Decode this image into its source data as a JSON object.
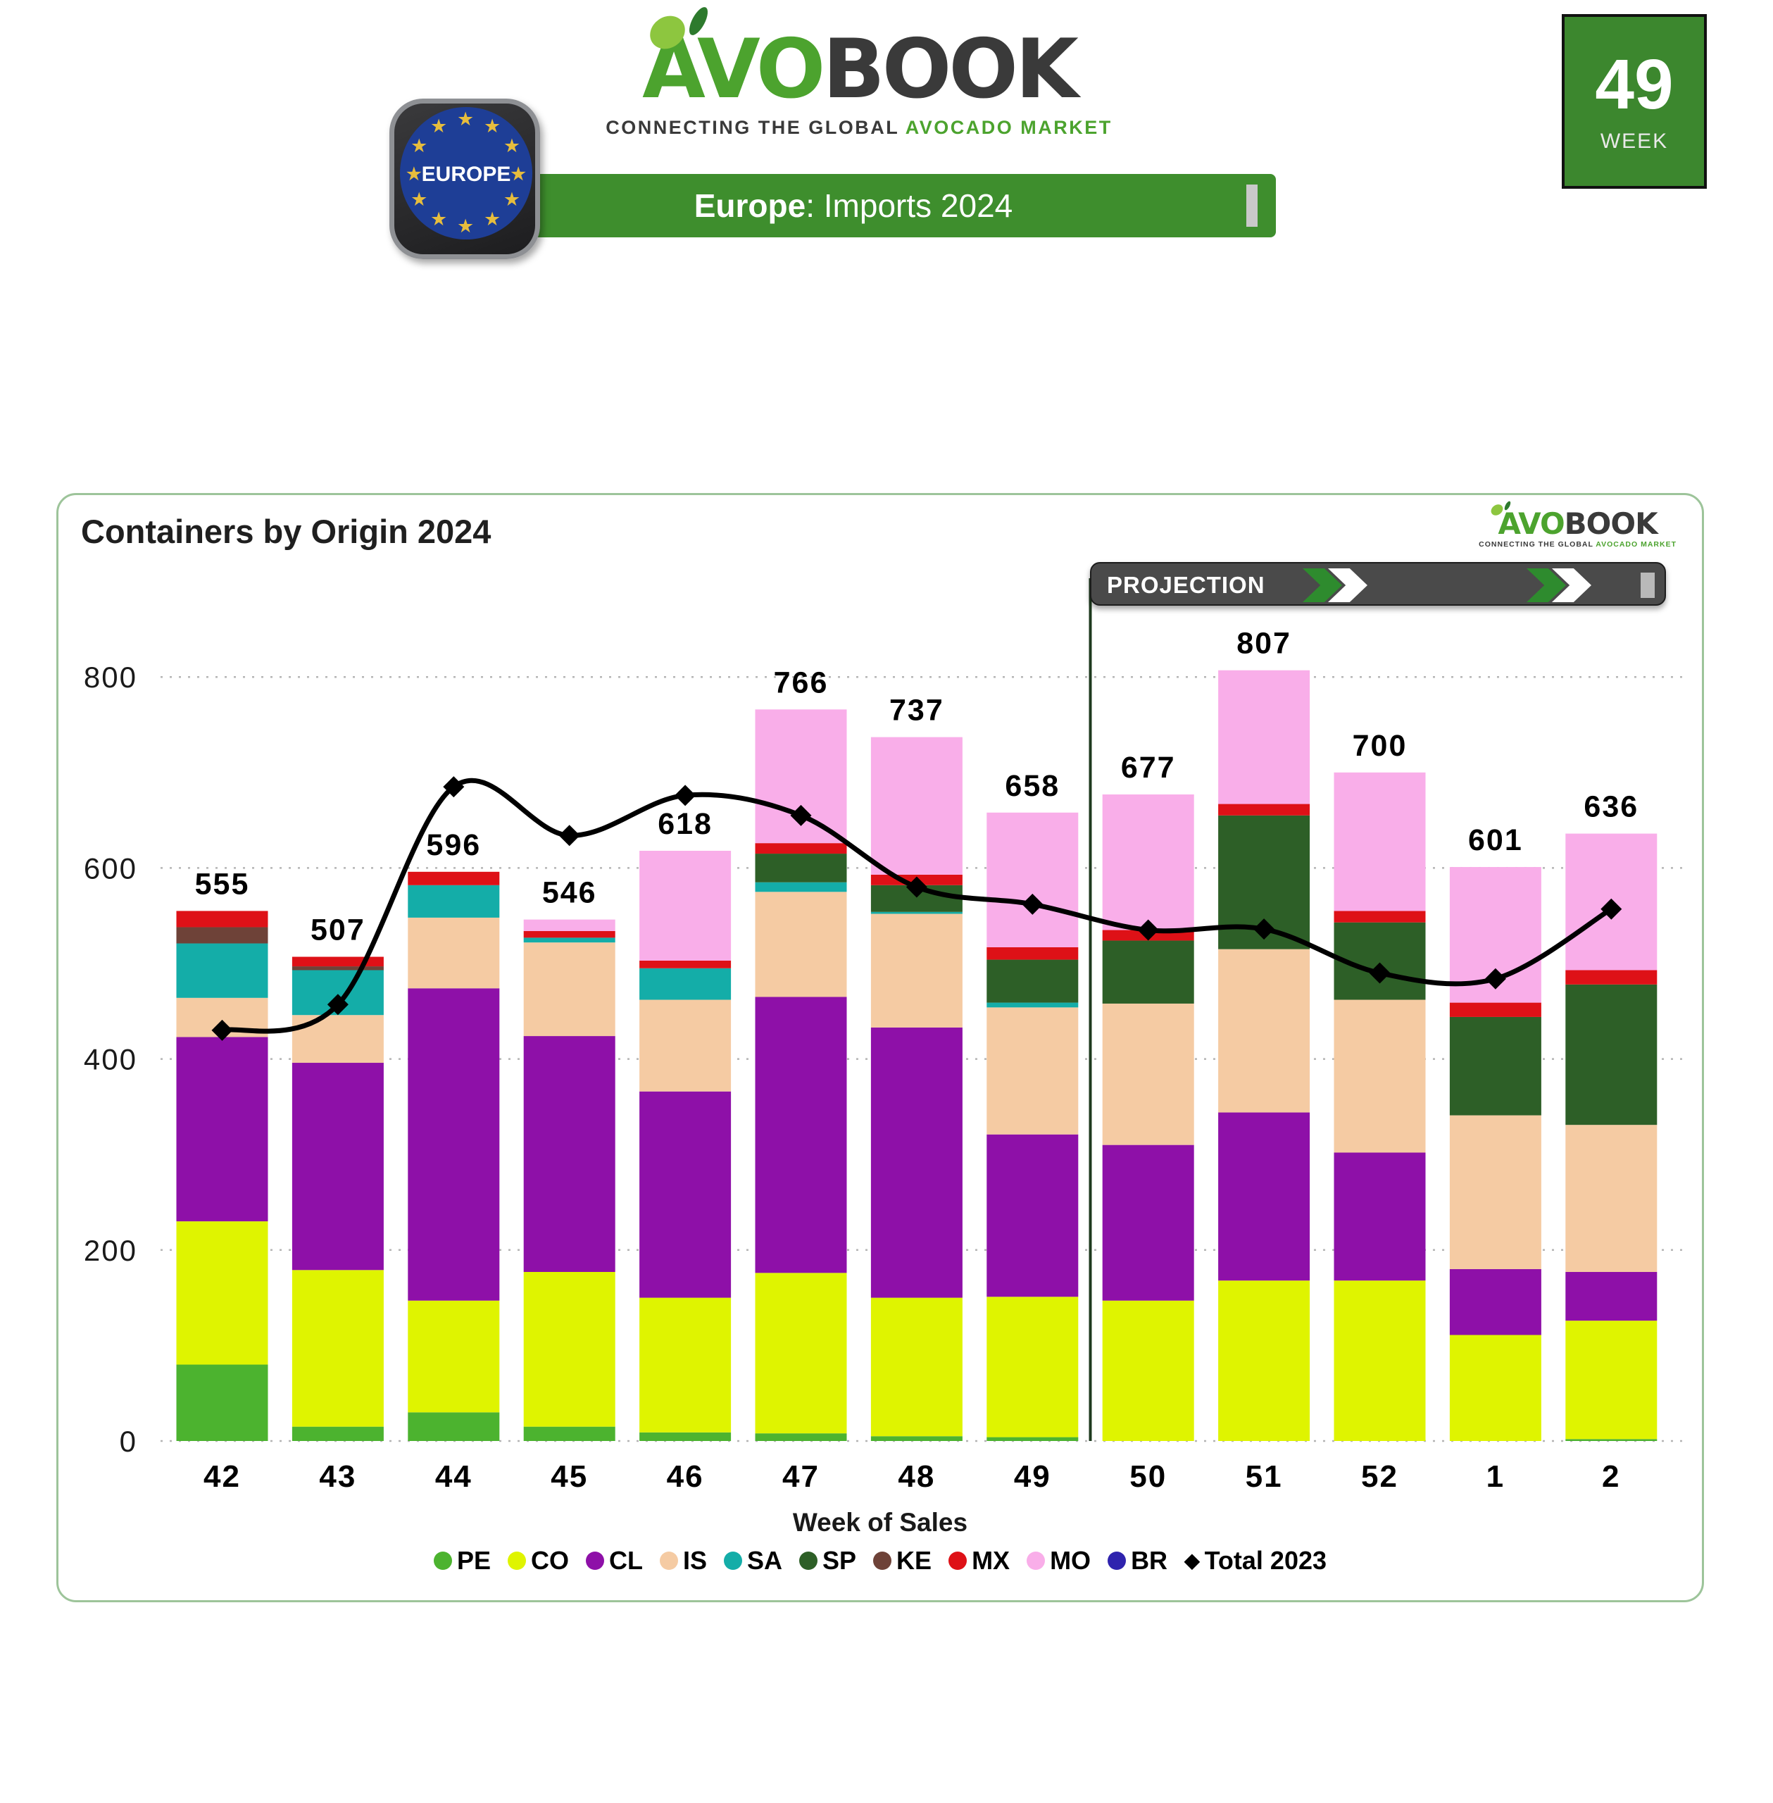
{
  "header": {
    "logo": {
      "avo": "AVO",
      "book": "BOOK",
      "tagline_dark": "CONNECTING THE GLOBAL",
      "tagline_green": "AVOCADO MARKET"
    },
    "banner": {
      "region": "Europe",
      "rest": ": Imports 2024"
    },
    "eu_badge": {
      "label": "EUROPE",
      "star_icon": "★",
      "ring_star_count": 10
    },
    "week_badge": {
      "number": "49",
      "label": "WEEK"
    }
  },
  "chart": {
    "title": "Containers by Origin 2024",
    "projection_label": "PROJECTION"
  },
  "colors": {
    "banner_green": "#3E8E2D",
    "week_badge_green": "#3C872E",
    "logo_green": "#4CA32E",
    "card_border": "#9DC49A",
    "projection_bar": "#4A4A4A",
    "line_2023": "#000000"
  },
  "chart_data": {
    "type": "bar",
    "stacked": true,
    "title": "Containers by Origin 2024",
    "xlabel": "Week of Sales",
    "ylabel": "",
    "ylim": [
      0,
      880
    ],
    "yticks": [
      0,
      200,
      400,
      600,
      800
    ],
    "grid": "dotted-horizontal",
    "legend_position": "bottom",
    "categories": [
      "42",
      "43",
      "44",
      "45",
      "46",
      "47",
      "48",
      "49",
      "50",
      "51",
      "52",
      "1",
      "2"
    ],
    "totals": [
      555,
      507,
      596,
      546,
      618,
      766,
      737,
      658,
      677,
      807,
      700,
      601,
      636
    ],
    "series": [
      {
        "name": "PE",
        "color": "#4CB32F",
        "values": [
          80,
          15,
          30,
          15,
          9,
          8,
          5,
          4,
          0,
          0,
          0,
          0,
          2
        ]
      },
      {
        "name": "CO",
        "color": "#DFF400",
        "values": [
          150,
          164,
          117,
          162,
          141,
          168,
          145,
          147,
          147,
          168,
          168,
          111,
          124
        ]
      },
      {
        "name": "CL",
        "color": "#8E10A8",
        "values": [
          193,
          217,
          327,
          247,
          216,
          289,
          283,
          170,
          163,
          176,
          134,
          69,
          51
        ]
      },
      {
        "name": "IS",
        "color": "#F5CBA3",
        "values": [
          41,
          50,
          74,
          98,
          96,
          110,
          119,
          133,
          148,
          171,
          160,
          161,
          154
        ]
      },
      {
        "name": "SA",
        "color": "#14ADA8",
        "values": [
          57,
          47,
          34,
          5,
          33,
          10,
          2,
          5,
          0,
          0,
          0,
          0,
          0
        ]
      },
      {
        "name": "SP",
        "color": "#2D5F27",
        "values": [
          0,
          0,
          0,
          0,
          0,
          30,
          28,
          45,
          66,
          140,
          81,
          103,
          147
        ]
      },
      {
        "name": "KE",
        "color": "#6E4238",
        "values": [
          17,
          4,
          0,
          0,
          0,
          0,
          0,
          0,
          0,
          0,
          0,
          0,
          0
        ]
      },
      {
        "name": "MX",
        "color": "#DE1117",
        "values": [
          17,
          10,
          14,
          7,
          8,
          11,
          11,
          13,
          11,
          12,
          12,
          15,
          15
        ]
      },
      {
        "name": "MO",
        "color": "#F9AEE9",
        "values": [
          0,
          0,
          0,
          12,
          115,
          140,
          144,
          141,
          142,
          140,
          145,
          142,
          143
        ]
      },
      {
        "name": "BR",
        "color": "#2F23AE",
        "values": [
          0,
          0,
          0,
          0,
          0,
          0,
          0,
          0,
          0,
          0,
          0,
          0,
          0
        ]
      }
    ],
    "line_series": {
      "name": "Total 2023",
      "color": "#000000",
      "marker": "diamond",
      "values": [
        430,
        457,
        685,
        634,
        676,
        655,
        580,
        562,
        535,
        536,
        490,
        484,
        557
      ]
    },
    "projection": {
      "label": "PROJECTION",
      "starts_after_category": "49"
    }
  }
}
